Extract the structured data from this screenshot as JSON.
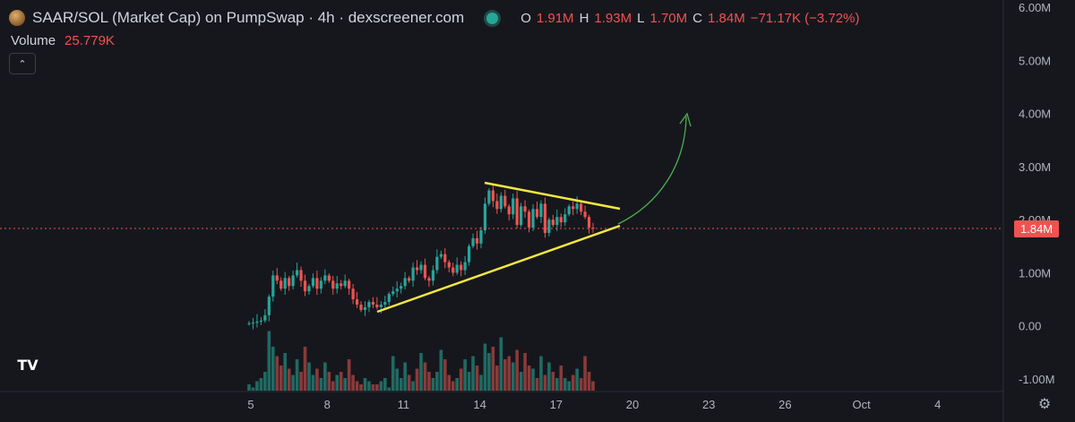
{
  "header": {
    "title": "SAAR/SOL (Market Cap) on PumpSwap · 4h · dexscreener.com",
    "ohlc": [
      {
        "key": "O",
        "value": "1.91M"
      },
      {
        "key": "H",
        "value": "1.93M"
      },
      {
        "key": "L",
        "value": "1.70M"
      },
      {
        "key": "C",
        "value": "1.84M"
      }
    ],
    "change": "−71.17K (−3.72%)"
  },
  "volume": {
    "label": "Volume",
    "value": "25.779K"
  },
  "current_price_tag": "1.84M",
  "tv_logo_text": "TV",
  "icons": {
    "collapse": "chevron-up-icon",
    "settings": "gear-icon",
    "logo": "tradingview-logo"
  },
  "colors": {
    "up": "#26a69a",
    "down": "#ef5350",
    "trendline": "#f5e642",
    "arrow": "#4caf50",
    "background": "#16171d"
  },
  "chart_data": {
    "type": "candlestick",
    "interval": "4h",
    "y_ticks": [
      "6.00M",
      "5.00M",
      "4.00M",
      "3.00M",
      "2.00M",
      "1.00M",
      "0.00",
      "-1.00M"
    ],
    "y_tick_values": [
      6,
      5,
      4,
      3,
      2,
      1,
      0,
      -1
    ],
    "x_ticks": [
      "5",
      "8",
      "11",
      "14",
      "17",
      "20",
      "23",
      "26",
      "Oct",
      "4"
    ],
    "x_tick_values": [
      5,
      8,
      11,
      14,
      17,
      20,
      23,
      26,
      29,
      32
    ],
    "ylim": [
      -1.1,
      6.1
    ],
    "current_price": 1.84,
    "close_series_millions": [
      0.05,
      0.06,
      0.08,
      0.1,
      0.2,
      0.55,
      0.95,
      0.85,
      0.7,
      0.9,
      0.75,
      0.95,
      1.05,
      0.85,
      0.65,
      0.75,
      0.9,
      0.7,
      0.85,
      0.95,
      0.85,
      0.7,
      0.8,
      0.75,
      0.85,
      0.7,
      0.5,
      0.4,
      0.3,
      0.35,
      0.45,
      0.4,
      0.35,
      0.4,
      0.45,
      0.6,
      0.65,
      0.7,
      0.75,
      0.9,
      0.85,
      1.1,
      1.05,
      1.15,
      0.9,
      0.85,
      1.05,
      1.3,
      1.35,
      1.2,
      1.1,
      1.0,
      1.15,
      1.05,
      1.2,
      1.5,
      1.65,
      1.55,
      1.8,
      2.3,
      2.55,
      2.35,
      2.2,
      2.45,
      2.25,
      2.1,
      2.4,
      1.9,
      2.25,
      2.15,
      1.85,
      2.2,
      2.05,
      2.3,
      1.75,
      2.0,
      1.9,
      2.05,
      1.95,
      2.1,
      2.25,
      2.2,
      2.3,
      2.15,
      2.05,
      1.85,
      1.84
    ],
    "volume_series": [
      0.1,
      0.05,
      0.15,
      0.2,
      0.3,
      0.95,
      0.7,
      0.55,
      0.4,
      0.6,
      0.35,
      0.25,
      0.5,
      0.3,
      0.7,
      0.45,
      0.25,
      0.35,
      0.2,
      0.45,
      0.3,
      0.15,
      0.25,
      0.3,
      0.2,
      0.5,
      0.25,
      0.15,
      0.1,
      0.2,
      0.15,
      0.1,
      0.1,
      0.15,
      0.2,
      0.05,
      0.55,
      0.35,
      0.2,
      0.45,
      0.25,
      0.15,
      0.35,
      0.6,
      0.45,
      0.3,
      0.2,
      0.3,
      0.65,
      0.5,
      0.25,
      0.15,
      0.2,
      0.35,
      0.5,
      0.3,
      0.55,
      0.4,
      0.25,
      0.75,
      0.6,
      0.7,
      0.4,
      0.85,
      0.5,
      0.55,
      0.45,
      0.65,
      0.3,
      0.6,
      0.4,
      0.35,
      0.2,
      0.55,
      0.25,
      0.45,
      0.3,
      0.2,
      0.4,
      0.2,
      0.15,
      0.25,
      0.35,
      0.2,
      0.55,
      0.3,
      0.15
    ]
  }
}
